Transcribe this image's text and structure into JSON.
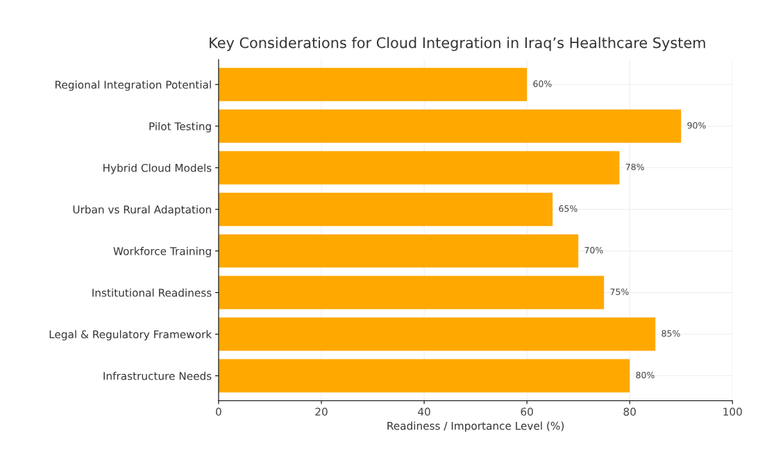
{
  "chart_data": {
    "type": "bar",
    "orientation": "horizontal",
    "title": "Key Considerations for Cloud Integration in Iraq’s Healthcare System",
    "xlabel": "Readiness / Importance Level (%)",
    "categories": [
      "Regional Integration Potential",
      "Pilot Testing",
      "Hybrid Cloud Models",
      "Urban vs Rural Adaptation",
      "Workforce Training",
      "Institutional Readiness",
      "Legal & Regulatory Framework",
      "Infrastructure Needs"
    ],
    "values": [
      60,
      90,
      78,
      65,
      70,
      75,
      85,
      80
    ],
    "value_labels": [
      "60%",
      "90%",
      "78%",
      "65%",
      "70%",
      "75%",
      "85%",
      "80%"
    ],
    "color": "#ffa800",
    "xlim": [
      0,
      100
    ],
    "xticks": [
      0,
      20,
      40,
      60,
      80,
      100
    ],
    "grid": true
  }
}
